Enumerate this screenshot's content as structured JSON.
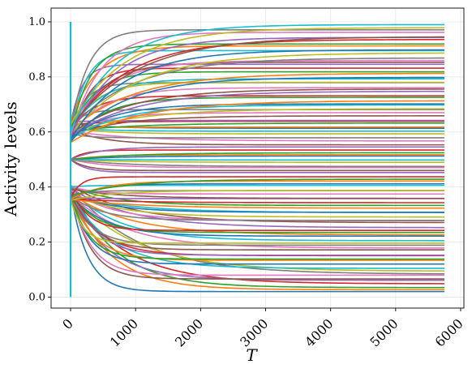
{
  "chart_data": {
    "type": "line",
    "title": "",
    "xlabel": "T",
    "ylabel": "Activity levels",
    "xlim": [
      -300,
      6050
    ],
    "ylim": [
      -0.04,
      1.05
    ],
    "x_ticks": [
      0,
      1000,
      2000,
      3000,
      4000,
      5000,
      6000
    ],
    "x_tick_labels": [
      "0",
      "1000",
      "2000",
      "3000",
      "4000",
      "5000",
      "6000"
    ],
    "y_ticks": [
      0.0,
      0.2,
      0.4,
      0.6,
      0.8,
      1.0
    ],
    "y_tick_labels": [
      "0.0",
      "0.2",
      "0.4",
      "0.6",
      "0.8",
      "1.0"
    ],
    "grid": true,
    "legend": "none",
    "x_start": 0,
    "x_end": 5750,
    "series_count": 100,
    "final_values_range": [
      0.02,
      0.99
    ],
    "transient_peak_value": 1.0,
    "color_cycle": [
      "#1f77b4",
      "#ff7f0e",
      "#2ca02c",
      "#d62728",
      "#9467bd",
      "#8c564b",
      "#e377c2",
      "#7f7f7f",
      "#bcbd22",
      "#17becf"
    ]
  }
}
